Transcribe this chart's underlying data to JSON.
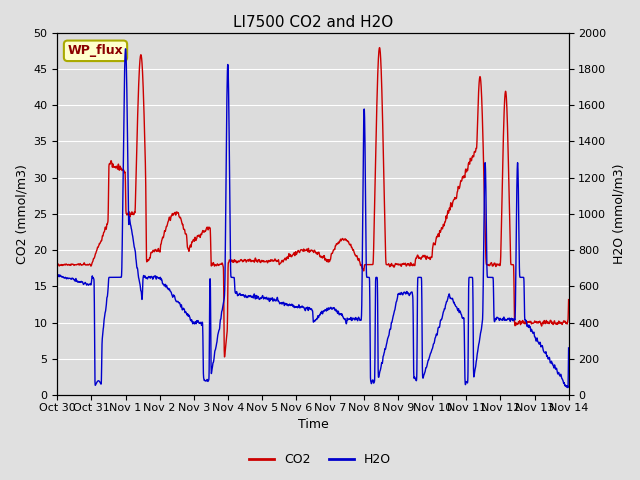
{
  "title": "LI7500 CO2 and H2O",
  "xlabel": "Time",
  "ylabel_left": "CO2 (mmol/m3)",
  "ylabel_right": "H2O (mmol/m3)",
  "ylim_left": [
    0,
    50
  ],
  "ylim_right": [
    0,
    2000
  ],
  "yticks_left": [
    0,
    5,
    10,
    15,
    20,
    25,
    30,
    35,
    40,
    45,
    50
  ],
  "yticks_right": [
    0,
    200,
    400,
    600,
    800,
    1000,
    1200,
    1400,
    1600,
    1800,
    2000
  ],
  "x_tick_labels": [
    "Oct 30",
    "Oct 31",
    "Nov 1",
    "Nov 2",
    "Nov 3",
    "Nov 4",
    "Nov 5",
    "Nov 6",
    "Nov 7",
    "Nov 8",
    "Nov 9",
    "Nov 10",
    "Nov 11",
    "Nov 12",
    "Nov 13",
    "Nov 14"
  ],
  "co2_color": "#CC0000",
  "h2o_color": "#0000CC",
  "bg_color": "#E0E0E0",
  "plot_bg_color": "#DCDCDC",
  "grid_color": "#FFFFFF",
  "legend_co2": "CO2",
  "legend_h2o": "H2O",
  "annotation_text": "WP_flux",
  "title_fontsize": 11,
  "axis_fontsize": 9,
  "tick_fontsize": 8,
  "legend_fontsize": 9,
  "line_width": 1.0
}
